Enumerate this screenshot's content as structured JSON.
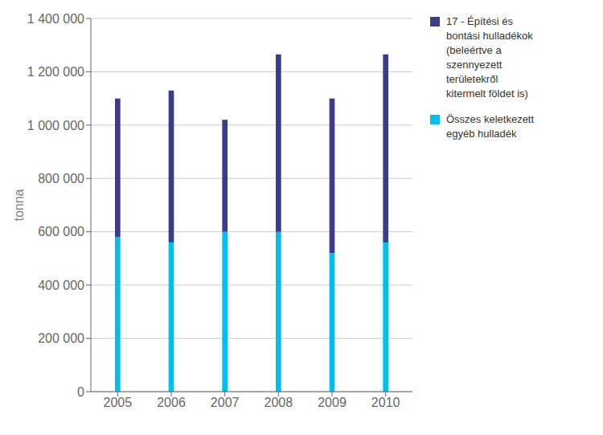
{
  "chart_data": {
    "type": "bar",
    "stacked": true,
    "categories": [
      "2005",
      "2006",
      "2007",
      "2008",
      "2009",
      "2010"
    ],
    "series": [
      {
        "name": "Összes keletkezett\negyéb hulladék",
        "color": "#00BFEE",
        "values": [
          580000,
          560000,
          600000,
          600000,
          520000,
          560000
        ]
      },
      {
        "name": "17 - Építési és\nbontási hulladékok\n(beleértve a\nszennyezett\nterületekről\nkitermelt földet is)",
        "color": "#3C3B8C",
        "values": [
          520000,
          570000,
          420000,
          665000,
          580000,
          705000
        ]
      }
    ],
    "ylabel": "tonna",
    "ylim": [
      0,
      1400000
    ],
    "yticks": [
      0,
      {
        "value": 200000,
        "label": "200 000"
      },
      {
        "value": 400000,
        "label": "400 000"
      },
      {
        "value": 600000,
        "label": "600 000"
      },
      {
        "value": 800000,
        "label": "800 000"
      },
      {
        "value": 1000000,
        "label": "1 000 000"
      },
      {
        "value": 1200000,
        "label": "1 200 000"
      },
      {
        "value": 1400000,
        "label": "1 400 000"
      }
    ],
    "grid": true,
    "legend": "right"
  }
}
